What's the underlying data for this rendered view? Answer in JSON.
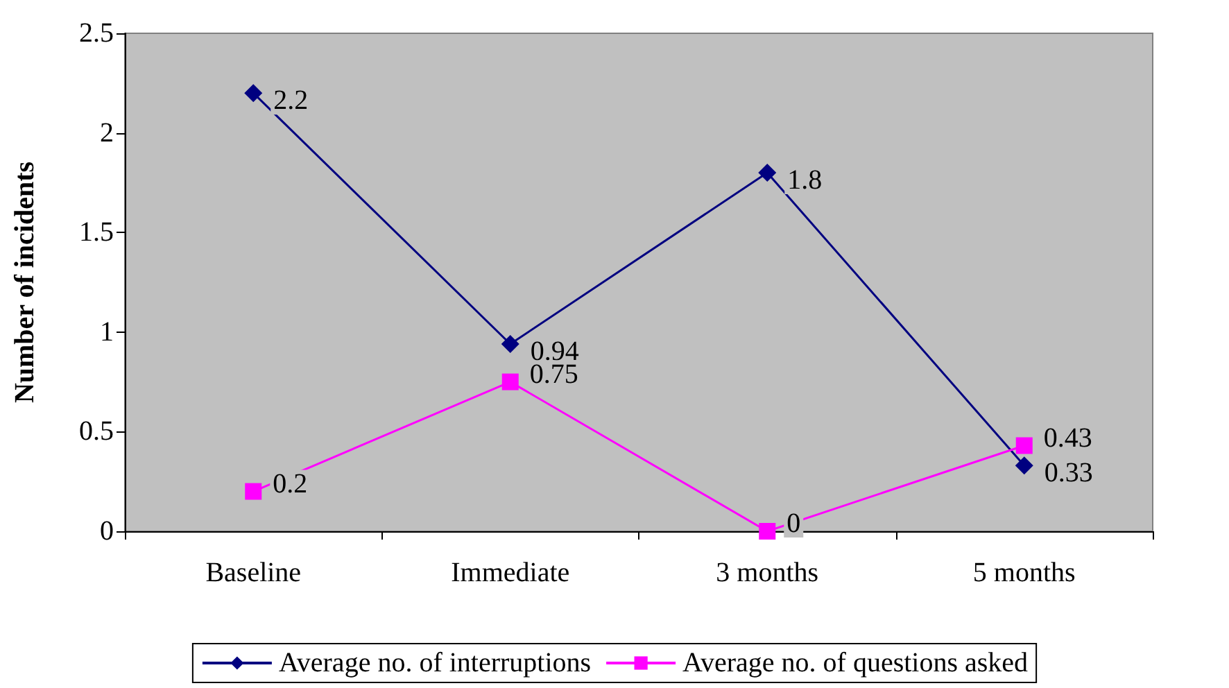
{
  "chart_data": {
    "type": "line",
    "ylabel": "Number of incidents",
    "categories": [
      "Baseline",
      "Immediate",
      "3 months",
      "5 months"
    ],
    "series": [
      {
        "name": "Average no. of interruptions",
        "color": "#000080",
        "marker": "diamond",
        "values": [
          2.2,
          0.94,
          1.8,
          0.33
        ]
      },
      {
        "name": "Average no. of questions asked",
        "color": "#ff00ff",
        "marker": "square",
        "values": [
          0.2,
          0.75,
          0,
          0.43
        ]
      }
    ],
    "ylim": [
      0,
      2.5
    ],
    "yticks": [
      0,
      0.5,
      1,
      1.5,
      2,
      2.5
    ],
    "grid": false,
    "legend": "bottom",
    "data_labels": true,
    "line_style": "solid"
  }
}
